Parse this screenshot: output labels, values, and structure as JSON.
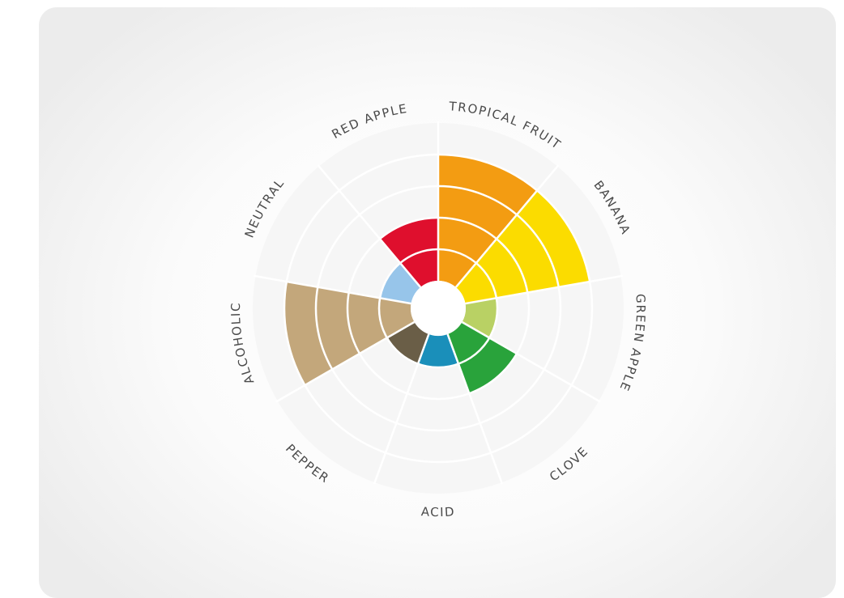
{
  "chart_data": {
    "type": "radial-bar",
    "title": "",
    "max_rings": 4,
    "categories": [
      {
        "name": "TROPICAL FRUIT",
        "value": 4,
        "color": "#f39c12"
      },
      {
        "name": "BANANA",
        "value": 4,
        "color": "#fbdc00"
      },
      {
        "name": "GREEN APPLE",
        "value": 1,
        "color": "#b9d164"
      },
      {
        "name": "CLOVE",
        "value": 2,
        "color": "#29a33b"
      },
      {
        "name": "ACID",
        "value": 1,
        "color": "#1a8fba"
      },
      {
        "name": "PEPPER",
        "value": 1,
        "color": "#6a5e47"
      },
      {
        "name": "ALCOHOLIC",
        "value": 4,
        "color": "#c3a77b"
      },
      {
        "name": "NEUTRAL",
        "value": 1,
        "color": "#97c5ea"
      },
      {
        "name": "RED APPLE",
        "value": 2,
        "color": "#df0f2d"
      }
    ],
    "grid": true,
    "legend": "none"
  }
}
